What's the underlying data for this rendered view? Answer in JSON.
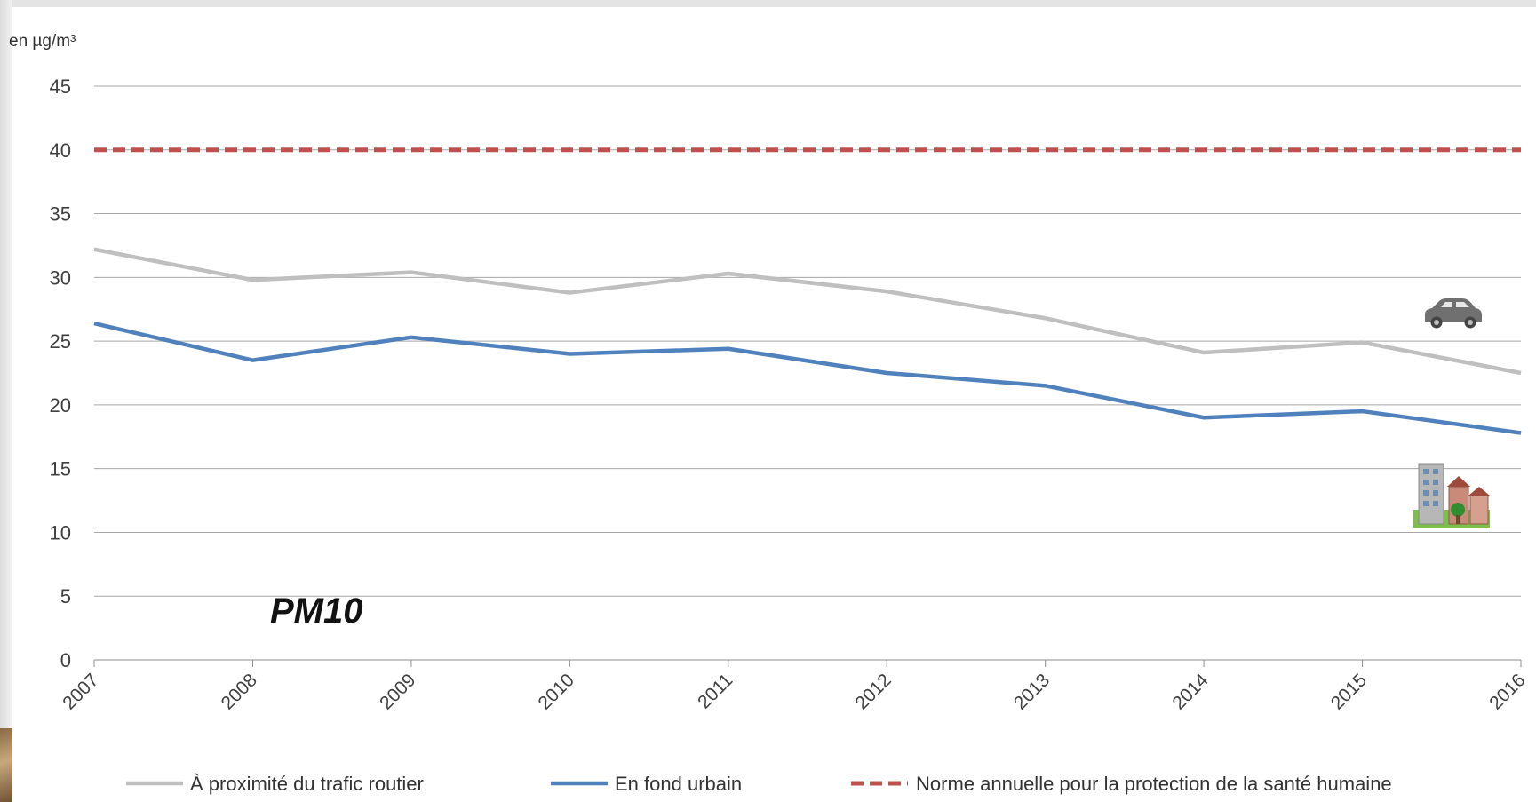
{
  "chart_data": {
    "type": "line",
    "title": "PM10",
    "ylabel": "en µg/m³",
    "xlabel": "",
    "ylim": [
      0,
      45
    ],
    "yticks": [
      0,
      5,
      10,
      15,
      20,
      25,
      30,
      35,
      40,
      45
    ],
    "x": [
      "2007",
      "2008",
      "2009",
      "2010",
      "2011",
      "2012",
      "2013",
      "2014",
      "2015",
      "2016"
    ],
    "grid": "horizontal",
    "legend_position": "bottom",
    "series": [
      {
        "name": "À proximité du trafic routier",
        "color": "#bfbfbf",
        "style": "solid",
        "icon": "car-icon",
        "values": [
          32.2,
          29.8,
          30.4,
          28.8,
          30.3,
          28.9,
          26.8,
          24.1,
          24.9,
          22.5
        ]
      },
      {
        "name": "En fond urbain",
        "color": "#4f81bd",
        "style": "solid",
        "icon": "urban-buildings-icon",
        "values": [
          26.4,
          23.5,
          25.3,
          24.0,
          24.4,
          22.5,
          21.5,
          19.0,
          19.5,
          17.8
        ]
      },
      {
        "name": "Norme annuelle pour la protection de la santé humaine",
        "color": "#c0504d",
        "style": "dashed",
        "values": [
          40,
          40,
          40,
          40,
          40,
          40,
          40,
          40,
          40,
          40
        ]
      }
    ]
  }
}
